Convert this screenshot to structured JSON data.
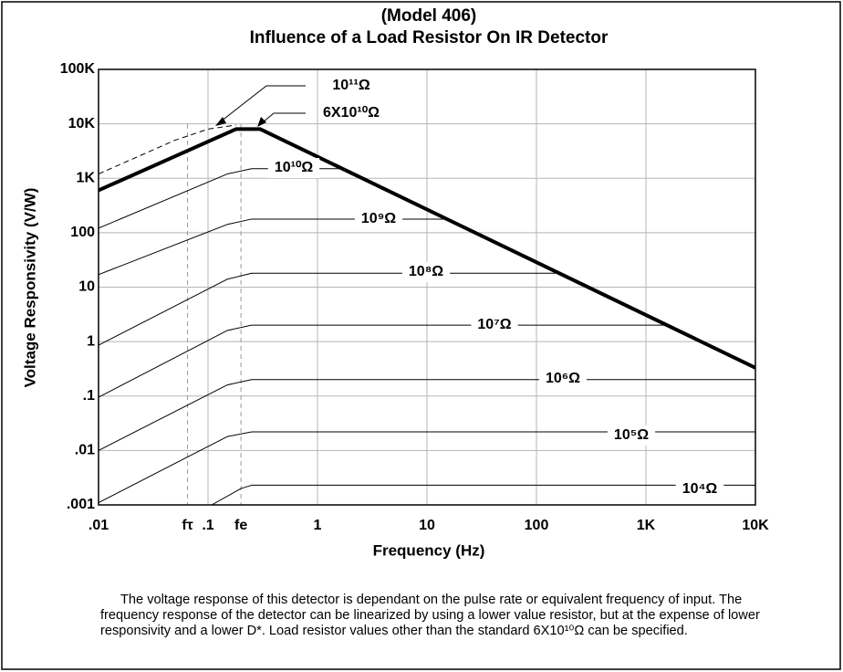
{
  "chart_data": {
    "type": "line",
    "title": "(Model  406)",
    "subtitle": "Influence of a Load Resistor On IR Detector",
    "x_label": "Frequency (Hz)",
    "y_label": "Voltage Responsivity (V/W)",
    "log_x": true,
    "log_y": true,
    "grid": true,
    "xlim": [
      0.01,
      10000
    ],
    "ylim": [
      0.001,
      100000
    ],
    "xticks": [
      {
        "value": 0.01,
        "label": ".01"
      },
      {
        "value": 0.1,
        "label": ".1"
      },
      1,
      10,
      100,
      {
        "value": 1000,
        "label": "1K"
      },
      {
        "value": 10000,
        "label": "10K"
      }
    ],
    "yticks": [
      {
        "value": 0.001,
        "label": ".001"
      },
      {
        "value": 0.01,
        "label": ".01"
      },
      {
        "value": 0.1,
        "label": ".1"
      },
      1,
      10,
      100,
      {
        "value": 1000,
        "label": "1K"
      },
      {
        "value": 10000,
        "label": "10K"
      },
      {
        "value": 100000,
        "label": "100K"
      }
    ],
    "markers": [
      {
        "value": 0.065,
        "label": "fτ"
      },
      {
        "value": 0.2,
        "label": "fe"
      }
    ],
    "series": [
      {
        "name": "10¹¹Ω",
        "color": "#000000",
        "dashed": true,
        "width": 1,
        "x": [
          0.01,
          0.05,
          0.1,
          0.18
        ],
        "values": [
          1200,
          5000,
          8000,
          9500
        ]
      },
      {
        "name": "6X10¹⁰Ω",
        "color": "#000000",
        "dashed": false,
        "width": 4,
        "x": [
          0.01,
          0.18,
          0.3,
          10000
        ],
        "values": [
          600,
          8000,
          8000,
          0.33
        ]
      },
      {
        "name": "10¹⁰Ω",
        "color": "#000000",
        "dashed": false,
        "width": 1,
        "x": [
          0.01,
          0.15,
          0.25,
          1.6
        ],
        "values": [
          121,
          1200,
          1500,
          1500
        ]
      },
      {
        "name": "10⁹Ω",
        "color": "#000000",
        "dashed": false,
        "width": 1,
        "x": [
          0.01,
          0.15,
          0.25,
          15
        ],
        "values": [
          17,
          142,
          178,
          178
        ]
      },
      {
        "name": "10⁸Ω",
        "color": "#000000",
        "dashed": false,
        "width": 1,
        "x": [
          0.01,
          0.15,
          0.25,
          150
        ],
        "values": [
          0.86,
          14,
          18,
          18
        ]
      },
      {
        "name": "10⁷Ω",
        "color": "#000000",
        "dashed": false,
        "width": 1,
        "x": [
          0.01,
          0.15,
          0.25,
          1500
        ],
        "values": [
          0.095,
          1.6,
          2,
          2
        ]
      },
      {
        "name": "10⁶Ω",
        "color": "#000000",
        "dashed": false,
        "width": 1,
        "x": [
          0.01,
          0.15,
          0.25,
          10000
        ],
        "values": [
          0.01,
          0.16,
          0.2,
          0.2
        ]
      },
      {
        "name": "10⁵Ω",
        "color": "#000000",
        "dashed": false,
        "width": 1,
        "x": [
          0.01,
          0.15,
          0.25,
          10000
        ],
        "values": [
          0.0011,
          0.018,
          0.022,
          0.022
        ]
      },
      {
        "name": "10⁴Ω",
        "color": "#000000",
        "dashed": false,
        "width": 1,
        "x": [
          0.108,
          0.2,
          0.25,
          10000
        ],
        "values": [
          0.001,
          0.002,
          0.0023,
          0.0023
        ]
      }
    ],
    "caption": "The voltage response of this detector is dependant on the pulse rate or equivalent frequency of input.  The frequency response of the detector can be linearized by using a lower value resistor, but at the expense of lower responsivity and a lower D*.  Load resistor values other than the standard 6X10¹⁰Ω can be specified."
  }
}
